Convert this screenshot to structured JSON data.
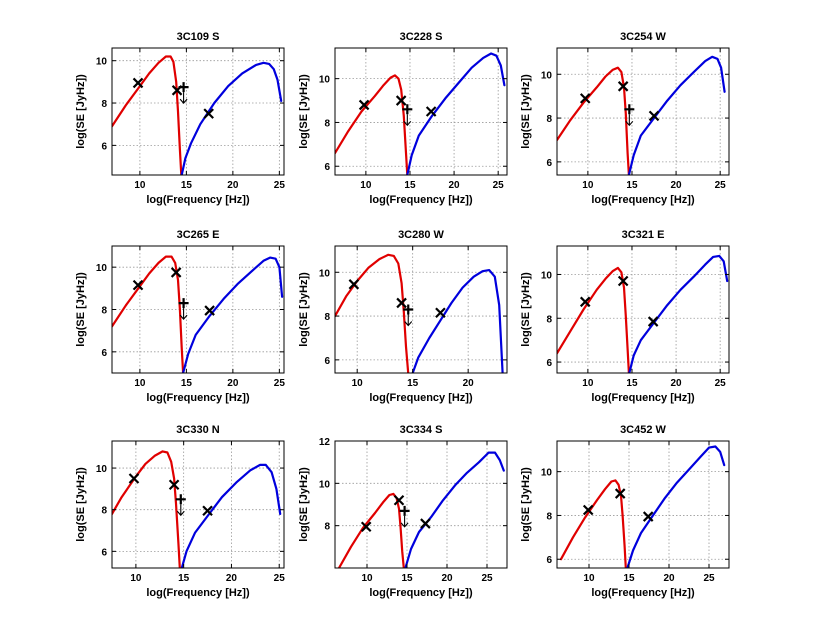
{
  "figure": {
    "xlabel": "log(Frequency [Hz])",
    "ylabel": "log(SE [JyHz])",
    "colors": {
      "synchrotron": "#e00000",
      "ic": "#0000dd",
      "markers": "#000000",
      "grid": "#9a9a9a"
    }
  },
  "chart_data": [
    {
      "type": "line",
      "title": "3C109 S",
      "xlabel": "log(Frequency [Hz])",
      "ylabel": "log(SE [JyHz])",
      "xlim": [
        7,
        25.5
      ],
      "ylim": [
        4.6,
        10.6
      ],
      "xticks": [
        10,
        15,
        20,
        25
      ],
      "yticks": [
        6,
        8,
        10
      ],
      "grid": true,
      "series": [
        {
          "name": "synchrotron",
          "color": "#e00000",
          "x": [
            7,
            8.5,
            10,
            11,
            12,
            12.8,
            13.3,
            13.6,
            13.9,
            14.1,
            14.3,
            14.45
          ],
          "y": [
            6.9,
            7.9,
            8.8,
            9.4,
            9.9,
            10.2,
            10.2,
            9.95,
            9.0,
            7.6,
            5.8,
            4.6
          ]
        },
        {
          "name": "inverse-compton",
          "color": "#0000dd",
          "x": [
            14.5,
            14.9,
            15.5,
            16.5,
            18,
            19.5,
            21,
            22.5,
            23.3,
            23.9,
            24.4,
            24.8,
            25.2
          ],
          "y": [
            4.6,
            5.4,
            6.1,
            7.0,
            8.0,
            8.8,
            9.4,
            9.8,
            9.9,
            9.85,
            9.6,
            9.1,
            8.1
          ]
        }
      ],
      "points": [
        {
          "x": 9.8,
          "y": 8.95
        },
        {
          "x": 14.0,
          "y": 8.6
        },
        {
          "x": 17.4,
          "y": 7.5
        }
      ],
      "upper_limits": [
        {
          "x": 14.7,
          "y": 8.75
        }
      ]
    },
    {
      "type": "line",
      "title": "3C228 S",
      "xlabel": "log(Frequency [Hz])",
      "ylabel": "log(SE [JyHz])",
      "xlim": [
        6.5,
        26
      ],
      "ylim": [
        5.6,
        11.4
      ],
      "xticks": [
        10,
        15,
        20,
        25
      ],
      "yticks": [
        6,
        8,
        10
      ],
      "grid": true,
      "series": [
        {
          "name": "synchrotron",
          "color": "#e00000",
          "x": [
            6.5,
            8,
            9.5,
            11,
            12,
            12.8,
            13.3,
            13.7,
            14.0,
            14.3,
            14.55,
            14.7
          ],
          "y": [
            6.6,
            7.6,
            8.5,
            9.2,
            9.7,
            10.05,
            10.15,
            10.0,
            9.5,
            8.3,
            6.6,
            5.6
          ]
        },
        {
          "name": "inverse-compton",
          "color": "#0000dd",
          "x": [
            14.7,
            15.2,
            16,
            17.5,
            19,
            20.5,
            22,
            23.3,
            24.2,
            24.8,
            25.3,
            25.7
          ],
          "y": [
            5.6,
            6.5,
            7.4,
            8.3,
            9.1,
            9.8,
            10.5,
            10.95,
            11.15,
            11.05,
            10.6,
            9.7
          ]
        }
      ],
      "points": [
        {
          "x": 9.8,
          "y": 8.8
        },
        {
          "x": 14.0,
          "y": 9.0
        },
        {
          "x": 17.4,
          "y": 8.5
        }
      ],
      "upper_limits": [
        {
          "x": 14.7,
          "y": 8.6
        }
      ]
    },
    {
      "type": "line",
      "title": "3C254 W",
      "xlabel": "log(Frequency [Hz])",
      "ylabel": "log(SE [JyHz])",
      "xlim": [
        6.5,
        26
      ],
      "ylim": [
        5.4,
        11.2
      ],
      "xticks": [
        10,
        15,
        20,
        25
      ],
      "yticks": [
        6,
        8,
        10
      ],
      "grid": true,
      "series": [
        {
          "name": "synchrotron",
          "color": "#e00000",
          "x": [
            6.5,
            8,
            9.5,
            11,
            12,
            12.8,
            13.4,
            13.8,
            14.1,
            14.3,
            14.5,
            14.65
          ],
          "y": [
            7.0,
            7.9,
            8.7,
            9.4,
            9.9,
            10.2,
            10.3,
            10.1,
            9.4,
            8.2,
            6.4,
            5.4
          ]
        },
        {
          "name": "inverse-compton",
          "color": "#0000dd",
          "x": [
            14.65,
            15.2,
            16,
            17.5,
            19,
            20.5,
            22,
            23.3,
            24.1,
            24.7,
            25.1,
            25.5
          ],
          "y": [
            5.4,
            6.3,
            7.2,
            8.0,
            8.8,
            9.5,
            10.1,
            10.6,
            10.8,
            10.7,
            10.3,
            9.2
          ]
        }
      ],
      "points": [
        {
          "x": 9.7,
          "y": 8.9
        },
        {
          "x": 14.0,
          "y": 9.45
        },
        {
          "x": 17.5,
          "y": 8.1
        }
      ],
      "upper_limits": [
        {
          "x": 14.7,
          "y": 8.4
        }
      ]
    },
    {
      "type": "line",
      "title": "3C265 E",
      "xlabel": "log(Frequency [Hz])",
      "ylabel": "log(SE [JyHz])",
      "xlim": [
        7,
        25.5
      ],
      "ylim": [
        5.0,
        11.0
      ],
      "xticks": [
        10,
        15,
        20,
        25
      ],
      "yticks": [
        6,
        8,
        10
      ],
      "grid": true,
      "series": [
        {
          "name": "synchrotron",
          "color": "#e00000",
          "x": [
            7,
            8.5,
            10,
            11,
            12,
            12.8,
            13.4,
            13.8,
            14.1,
            14.3,
            14.5,
            14.65
          ],
          "y": [
            7.2,
            8.2,
            9.1,
            9.7,
            10.2,
            10.5,
            10.5,
            10.2,
            9.4,
            8.0,
            6.2,
            5.0
          ]
        },
        {
          "name": "inverse-compton",
          "color": "#0000dd",
          "x": [
            14.65,
            15.2,
            16,
            17.5,
            19,
            20.5,
            22,
            23.3,
            24.0,
            24.6,
            25.0,
            25.3
          ],
          "y": [
            5.0,
            5.9,
            6.8,
            7.7,
            8.5,
            9.2,
            9.8,
            10.3,
            10.45,
            10.4,
            10.0,
            8.6
          ]
        }
      ],
      "points": [
        {
          "x": 9.8,
          "y": 9.15
        },
        {
          "x": 13.9,
          "y": 9.75
        },
        {
          "x": 17.5,
          "y": 7.95
        }
      ],
      "upper_limits": [
        {
          "x": 14.7,
          "y": 8.3
        }
      ]
    },
    {
      "type": "line",
      "title": "3C280 W",
      "xlabel": "log(Frequency [Hz])",
      "ylabel": "log(SE [JyHz])",
      "xlim": [
        8,
        23.5
      ],
      "ylim": [
        5.4,
        11.2
      ],
      "xticks": [
        10,
        15,
        20
      ],
      "yticks": [
        6,
        8,
        10
      ],
      "grid": true,
      "series": [
        {
          "name": "synchrotron",
          "color": "#e00000",
          "x": [
            8,
            9,
            10,
            11,
            12,
            12.8,
            13.3,
            13.7,
            14.0,
            14.2,
            14.4,
            14.6
          ],
          "y": [
            8.0,
            8.9,
            9.6,
            10.2,
            10.6,
            10.8,
            10.75,
            10.4,
            9.5,
            8.2,
            6.6,
            5.4
          ]
        },
        {
          "name": "inverse-compton",
          "color": "#0000dd",
          "x": [
            15.0,
            15.5,
            16.5,
            17.5,
            18.5,
            19.5,
            20.5,
            21.3,
            21.9,
            22.4,
            22.8,
            23.1
          ],
          "y": [
            5.4,
            6.1,
            7.0,
            7.8,
            8.6,
            9.3,
            9.8,
            10.05,
            10.1,
            9.8,
            8.5,
            5.4
          ]
        }
      ],
      "points": [
        {
          "x": 9.7,
          "y": 9.45
        },
        {
          "x": 14.0,
          "y": 8.6
        },
        {
          "x": 17.5,
          "y": 8.15
        }
      ],
      "upper_limits": [
        {
          "x": 14.6,
          "y": 8.3
        }
      ]
    },
    {
      "type": "line",
      "title": "3C321 E",
      "xlabel": "log(Frequency [Hz])",
      "ylabel": "log(SE [JyHz])",
      "xlim": [
        6.5,
        26
      ],
      "ylim": [
        5.5,
        11.3
      ],
      "xticks": [
        10,
        15,
        20,
        25
      ],
      "yticks": [
        6,
        8,
        10
      ],
      "grid": true,
      "series": [
        {
          "name": "synchrotron",
          "color": "#e00000",
          "x": [
            6.5,
            8,
            9.5,
            11,
            12,
            12.8,
            13.4,
            13.8,
            14.1,
            14.3,
            14.5,
            14.65
          ],
          "y": [
            6.4,
            7.4,
            8.4,
            9.3,
            9.8,
            10.15,
            10.3,
            10.1,
            9.4,
            8.1,
            6.6,
            5.5
          ]
        },
        {
          "name": "inverse-compton",
          "color": "#0000dd",
          "x": [
            14.7,
            15.2,
            16,
            17.5,
            19,
            20.5,
            22,
            23.3,
            24.2,
            24.9,
            25.4,
            25.8
          ],
          "y": [
            5.5,
            6.3,
            7.0,
            7.8,
            8.6,
            9.3,
            9.9,
            10.45,
            10.8,
            10.85,
            10.6,
            9.7
          ]
        }
      ],
      "points": [
        {
          "x": 9.7,
          "y": 8.75
        },
        {
          "x": 14.0,
          "y": 9.7
        },
        {
          "x": 17.4,
          "y": 7.85
        }
      ],
      "upper_limits": []
    },
    {
      "type": "line",
      "title": "3C330 N",
      "xlabel": "log(Frequency [Hz])",
      "ylabel": "log(SE [JyHz])",
      "xlim": [
        7.5,
        25.5
      ],
      "ylim": [
        5.2,
        11.3
      ],
      "xticks": [
        10,
        15,
        20,
        25
      ],
      "yticks": [
        6,
        8,
        10
      ],
      "grid": true,
      "series": [
        {
          "name": "synchrotron",
          "color": "#e00000",
          "x": [
            7.5,
            8.5,
            10,
            11,
            12,
            12.8,
            13.3,
            13.7,
            14.0,
            14.2,
            14.45,
            14.6
          ],
          "y": [
            7.8,
            8.6,
            9.6,
            10.2,
            10.6,
            10.8,
            10.75,
            10.3,
            9.5,
            8.3,
            6.4,
            5.2
          ]
        },
        {
          "name": "inverse-compton",
          "color": "#0000dd",
          "x": [
            14.8,
            15.3,
            16.2,
            17.5,
            19,
            20.5,
            22,
            23.0,
            23.6,
            24.2,
            24.7,
            25.1
          ],
          "y": [
            5.2,
            6.0,
            6.9,
            7.7,
            8.6,
            9.3,
            9.9,
            10.15,
            10.15,
            9.8,
            9.0,
            7.8
          ]
        }
      ],
      "points": [
        {
          "x": 9.8,
          "y": 9.5
        },
        {
          "x": 14.0,
          "y": 9.2
        },
        {
          "x": 17.5,
          "y": 7.95
        }
      ],
      "upper_limits": [
        {
          "x": 14.7,
          "y": 8.5
        }
      ]
    },
    {
      "type": "line",
      "title": "3C334 S",
      "xlabel": "log(Frequency [Hz])",
      "ylabel": "log(SE [JyHz])",
      "xlim": [
        6,
        27.5
      ],
      "ylim": [
        6.0,
        12.0
      ],
      "xticks": [
        10,
        15,
        20,
        25
      ],
      "yticks": [
        8,
        10,
        12
      ],
      "grid": true,
      "series": [
        {
          "name": "synchrotron",
          "color": "#e00000",
          "x": [
            6.5,
            8,
            9.5,
            11,
            12,
            12.8,
            13.3,
            13.7,
            14.0,
            14.2,
            14.4,
            14.6
          ],
          "y": [
            6.0,
            7.0,
            7.9,
            8.6,
            9.1,
            9.45,
            9.5,
            9.3,
            8.8,
            7.9,
            6.8,
            6.0
          ]
        },
        {
          "name": "inverse-compton",
          "color": "#0000dd",
          "x": [
            14.8,
            15.5,
            16.5,
            18,
            19.5,
            21,
            22.5,
            24,
            25.2,
            26.0,
            26.6,
            27.1
          ],
          "y": [
            6.0,
            6.9,
            7.7,
            8.4,
            9.2,
            9.9,
            10.5,
            11.0,
            11.45,
            11.45,
            11.1,
            10.6
          ]
        }
      ],
      "points": [
        {
          "x": 9.9,
          "y": 7.95
        },
        {
          "x": 14.0,
          "y": 9.2
        },
        {
          "x": 17.3,
          "y": 8.1
        }
      ],
      "upper_limits": [
        {
          "x": 14.7,
          "y": 8.7
        }
      ]
    },
    {
      "type": "line",
      "title": "3C452 W",
      "xlabel": "log(Frequency [Hz])",
      "ylabel": "log(SE [JyHz])",
      "xlim": [
        6,
        27.5
      ],
      "ylim": [
        5.6,
        11.4
      ],
      "xticks": [
        10,
        15,
        20,
        25
      ],
      "yticks": [
        6,
        8,
        10
      ],
      "grid": true,
      "series": [
        {
          "name": "synchrotron",
          "color": "#e00000",
          "x": [
            6.5,
            8,
            9.5,
            11,
            12,
            12.8,
            13.3,
            13.7,
            14.0,
            14.2,
            14.45,
            14.6
          ],
          "y": [
            6.0,
            7.0,
            7.9,
            8.7,
            9.2,
            9.55,
            9.6,
            9.4,
            8.9,
            8.0,
            6.6,
            5.6
          ]
        },
        {
          "name": "inverse-compton",
          "color": "#0000dd",
          "x": [
            14.8,
            15.5,
            16.5,
            18,
            19.5,
            21,
            22.5,
            24,
            25.0,
            25.8,
            26.4,
            26.9
          ],
          "y": [
            5.6,
            6.4,
            7.2,
            8.0,
            8.8,
            9.5,
            10.1,
            10.7,
            11.1,
            11.15,
            10.9,
            10.3
          ]
        }
      ],
      "points": [
        {
          "x": 9.9,
          "y": 8.25
        },
        {
          "x": 13.9,
          "y": 9.0
        },
        {
          "x": 17.4,
          "y": 7.95
        }
      ],
      "upper_limits": []
    }
  ]
}
